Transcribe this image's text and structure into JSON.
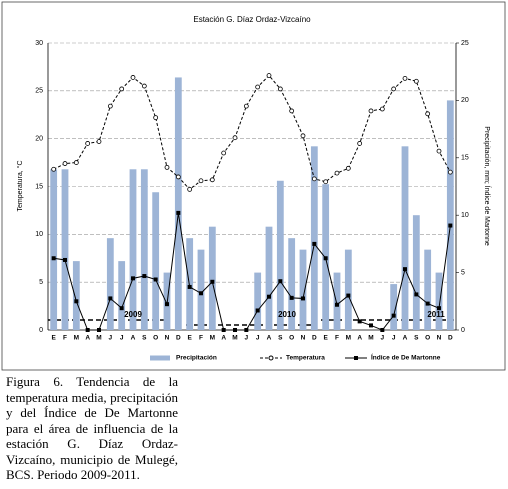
{
  "chart_data": {
    "type": "bar-line",
    "title": "Estación G. Díaz Ordaz-Vizcaíno",
    "y_label": "Temperatura, °C",
    "y2_label": "Precipitación, mm; Índice de Martonne",
    "categories": [
      "E",
      "F",
      "M",
      "A",
      "M",
      "J",
      "J",
      "A",
      "S",
      "O",
      "N",
      "D",
      "E",
      "F",
      "M",
      "A",
      "M",
      "J",
      "J",
      "A",
      "S",
      "O",
      "N",
      "D",
      "E",
      "F",
      "M",
      "A",
      "M",
      "J",
      "J",
      "A",
      "S",
      "O",
      "N",
      "D"
    ],
    "ylim": [
      0,
      30
    ],
    "yticks": [
      0,
      5,
      10,
      15,
      20,
      25,
      30
    ],
    "y2lim": [
      0,
      25
    ],
    "y2ticks": [
      0,
      5,
      10,
      15,
      20,
      25
    ],
    "grid": true,
    "annotations": [
      "2009",
      "2010",
      "2011"
    ],
    "series": [
      {
        "name": "Precipitación",
        "kind": "bar",
        "axis": "y2",
        "color": "#9db4d6",
        "values": [
          14,
          14,
          6,
          0,
          0,
          8,
          6,
          14,
          14,
          12,
          5,
          22,
          8,
          7,
          9,
          0,
          0,
          0,
          5,
          9,
          13,
          8,
          7,
          16,
          12.7,
          5,
          7,
          0,
          0,
          0,
          4,
          16,
          10,
          7,
          5,
          20
        ]
      },
      {
        "name": "Temperatura",
        "kind": "line",
        "axis": "y",
        "color": "#000000",
        "values": [
          16.8,
          17.4,
          17.5,
          19.5,
          19.7,
          23.4,
          25.2,
          26.4,
          25.5,
          22.2,
          17.0,
          16.0,
          14.7,
          15.6,
          15.7,
          18.5,
          20.1,
          23.4,
          25.4,
          26.6,
          25.2,
          22.9,
          20.3,
          15.8,
          15.5,
          16.4,
          16.9,
          19.5,
          22.9,
          23.1,
          25.2,
          26.3,
          26.0,
          22.6,
          18.7,
          16.5
        ]
      },
      {
        "name": "Índice de De Martonne",
        "kind": "line",
        "axis": "y2",
        "color": "#000000",
        "values": [
          6.25,
          6.1,
          2.5,
          0,
          0,
          2.75,
          1.9,
          4.5,
          4.7,
          4.4,
          2.25,
          10.2,
          3.75,
          3.2,
          4.2,
          0,
          0,
          0,
          1.7,
          2.9,
          4.25,
          2.8,
          2.75,
          7.5,
          6.25,
          2.2,
          3.0,
          0.75,
          0.4,
          0,
          1.25,
          5.3,
          3.1,
          2.3,
          1.9,
          9.1
        ]
      }
    ],
    "caption": "Figura 6. Tendencia de la temperatura media, precipitación y del Índice de De Martonne para el área de influencia de la estación G. Díaz Ordaz-Vizcaíno, municipio de Mulegé, BCS. Periodo 2009-2011."
  }
}
